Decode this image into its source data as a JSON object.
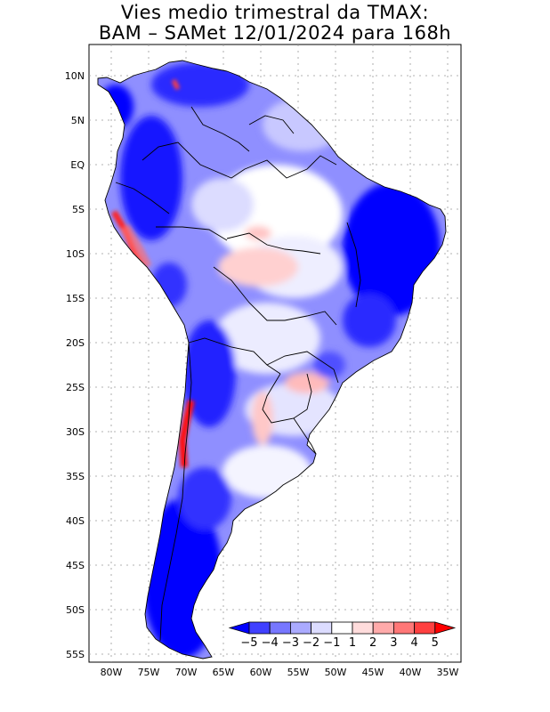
{
  "title": {
    "line1": "Vies medio trimestral da TMAX:",
    "line2": "BAM – SAMet 12/01/2024  para 168h"
  },
  "axes": {
    "lat_labels": [
      "10N",
      "5N",
      "EQ",
      "5S",
      "10S",
      "15S",
      "20S",
      "25S",
      "30S",
      "35S",
      "40S",
      "45S",
      "50S",
      "55S"
    ],
    "lon_labels": [
      "80W",
      "75W",
      "70W",
      "65W",
      "60W",
      "55W",
      "50W",
      "45W",
      "40W",
      "35W"
    ]
  },
  "legend": {
    "labels": [
      "−5",
      "−4",
      "−3",
      "−2",
      "−1",
      "1",
      "2",
      "3",
      "4",
      "5"
    ],
    "colors": [
      "#0000ff",
      "#4040ff",
      "#7777ff",
      "#aaaaff",
      "#dcdcff",
      "#ffffff",
      "#ffdcdc",
      "#ffaaaa",
      "#ff7777",
      "#ff4040",
      "#ff0000"
    ]
  }
}
